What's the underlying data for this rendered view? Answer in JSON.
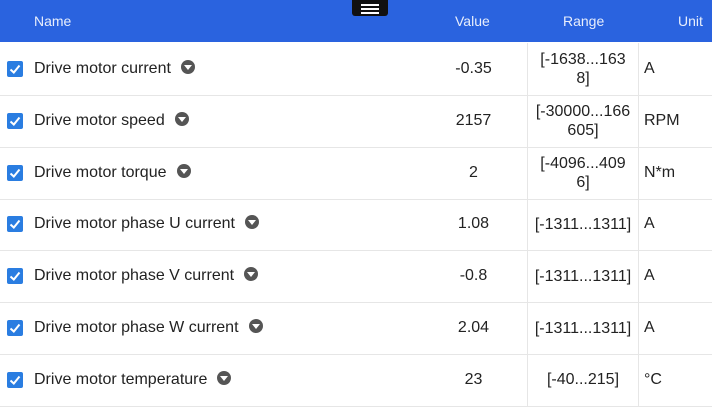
{
  "header": {
    "name": "Name",
    "value": "Value",
    "range": "Range",
    "unit": "Unit"
  },
  "rows": [
    {
      "name": "Drive motor current",
      "value": "-0.35",
      "range": "[-1638...1638]",
      "unit": "A"
    },
    {
      "name": "Drive motor speed",
      "value": "2157",
      "range": "[-30000...166605]",
      "unit": "RPM"
    },
    {
      "name": "Drive motor torque",
      "value": "2",
      "range": "[-4096...4096]",
      "unit": "N*m"
    },
    {
      "name": "Drive motor phase U current",
      "value": "1.08",
      "range": "[-1311...1311]",
      "unit": "A"
    },
    {
      "name": "Drive motor phase V current",
      "value": "-0.8",
      "range": "[-1311...1311]",
      "unit": "A"
    },
    {
      "name": "Drive motor phase W current",
      "value": "2.04",
      "range": "[-1311...1311]",
      "unit": "A"
    },
    {
      "name": "Drive motor temperature",
      "value": "23",
      "range": "[-40...215]",
      "unit": "°C"
    }
  ]
}
